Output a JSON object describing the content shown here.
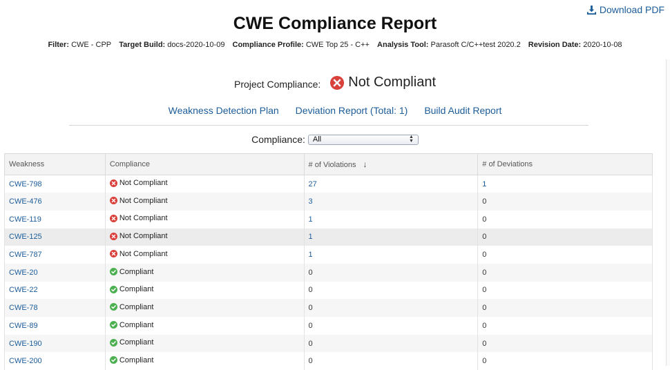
{
  "header": {
    "download_label": "Download PDF",
    "title": "CWE Compliance Report"
  },
  "meta": [
    {
      "label": "Filter:",
      "value": "CWE - CPP"
    },
    {
      "label": "Target Build:",
      "value": "docs-2020-10-09"
    },
    {
      "label": "Compliance Profile:",
      "value": "CWE Top 25 - C++"
    },
    {
      "label": "Analysis Tool:",
      "value": "Parasoft C/C++test 2020.2"
    },
    {
      "label": "Revision Date:",
      "value": "2020-10-08"
    }
  ],
  "project": {
    "label": "Project Compliance:",
    "status": "Not Compliant"
  },
  "links": {
    "weakness_plan": "Weakness Detection Plan",
    "deviation_report": "Deviation Report (Total: 1)",
    "build_audit": "Build Audit Report"
  },
  "filter": {
    "label": "Compliance:",
    "selected": "All"
  },
  "table": {
    "headers": [
      "Weakness",
      "Compliance",
      "# of Violations",
      "# of Deviations"
    ],
    "rows": [
      {
        "weakness": "CWE-798",
        "compliance": "Not Compliant",
        "violations": "27",
        "deviations": "1"
      },
      {
        "weakness": "CWE-476",
        "compliance": "Not Compliant",
        "violations": "3",
        "deviations": "0"
      },
      {
        "weakness": "CWE-119",
        "compliance": "Not Compliant",
        "violations": "1",
        "deviations": "0"
      },
      {
        "weakness": "CWE-125",
        "compliance": "Not Compliant",
        "violations": "1",
        "deviations": "0"
      },
      {
        "weakness": "CWE-787",
        "compliance": "Not Compliant",
        "violations": "1",
        "deviations": "0"
      },
      {
        "weakness": "CWE-20",
        "compliance": "Compliant",
        "violations": "0",
        "deviations": "0"
      },
      {
        "weakness": "CWE-22",
        "compliance": "Compliant",
        "violations": "0",
        "deviations": "0"
      },
      {
        "weakness": "CWE-78",
        "compliance": "Compliant",
        "violations": "0",
        "deviations": "0"
      },
      {
        "weakness": "CWE-89",
        "compliance": "Compliant",
        "violations": "0",
        "deviations": "0"
      },
      {
        "weakness": "CWE-190",
        "compliance": "Compliant",
        "violations": "0",
        "deviations": "0"
      },
      {
        "weakness": "CWE-200",
        "compliance": "Compliant",
        "violations": "0",
        "deviations": "0"
      }
    ]
  },
  "colors": {
    "link": "#1b5c99",
    "error": "#d9403a",
    "success": "#4caf50"
  }
}
